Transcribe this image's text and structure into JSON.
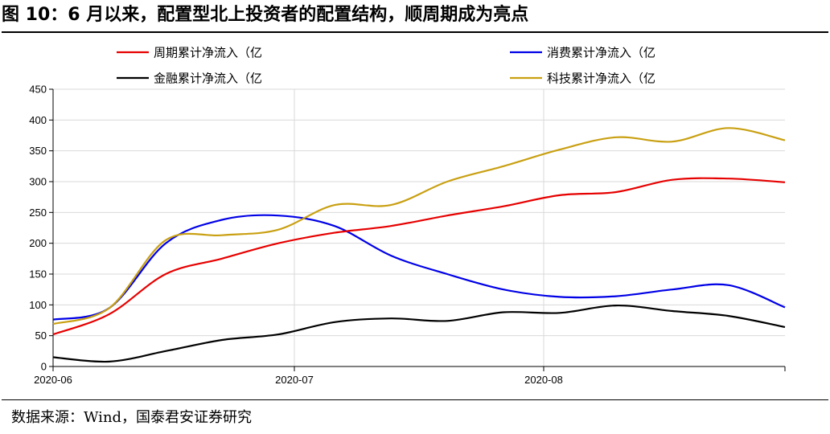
{
  "header": {
    "title": "图  10：6 月以来，配置型北上投资者的配置结构，顺周期成为亮点"
  },
  "footer": {
    "source": "数据来源：Wind，国泰君安证券研究"
  },
  "chart_data": {
    "type": "line",
    "title": "",
    "xlabel": "",
    "ylabel": "",
    "ylim": [
      0,
      450
    ],
    "yticks": [
      0,
      50,
      100,
      150,
      200,
      250,
      300,
      350,
      400,
      450
    ],
    "xlim": [
      "2020-06-01",
      "2020-08-31"
    ],
    "xticks": [
      "2020-06",
      "2020-07",
      "2020-08"
    ],
    "grid": true,
    "legend_position": "top",
    "x": [
      "2020-06-01",
      "2020-06-08",
      "2020-06-15",
      "2020-06-22",
      "2020-06-29",
      "2020-07-06",
      "2020-07-13",
      "2020-07-20",
      "2020-07-27",
      "2020-08-03",
      "2020-08-10",
      "2020-08-17",
      "2020-08-24",
      "2020-08-31"
    ],
    "series": [
      {
        "name": "周期累计净流入（亿",
        "color": "#e60000",
        "values": [
          52,
          85,
          150,
          175,
          200,
          217,
          228,
          245,
          260,
          278,
          283,
          303,
          305,
          299
        ]
      },
      {
        "name": "消费累计净流入（亿",
        "color": "#0000e6",
        "values": [
          76,
          95,
          200,
          238,
          245,
          228,
          180,
          150,
          125,
          113,
          114,
          125,
          132,
          96
        ]
      },
      {
        "name": "金融累计净流入（亿",
        "color": "#000000",
        "values": [
          15,
          8,
          25,
          43,
          52,
          72,
          78,
          74,
          88,
          87,
          99,
          90,
          82,
          64
        ]
      },
      {
        "name": "科技累计净流入（亿",
        "color": "#c9a012",
        "values": [
          69,
          95,
          205,
          213,
          222,
          262,
          262,
          300,
          325,
          352,
          372,
          365,
          387,
          367
        ]
      }
    ]
  }
}
